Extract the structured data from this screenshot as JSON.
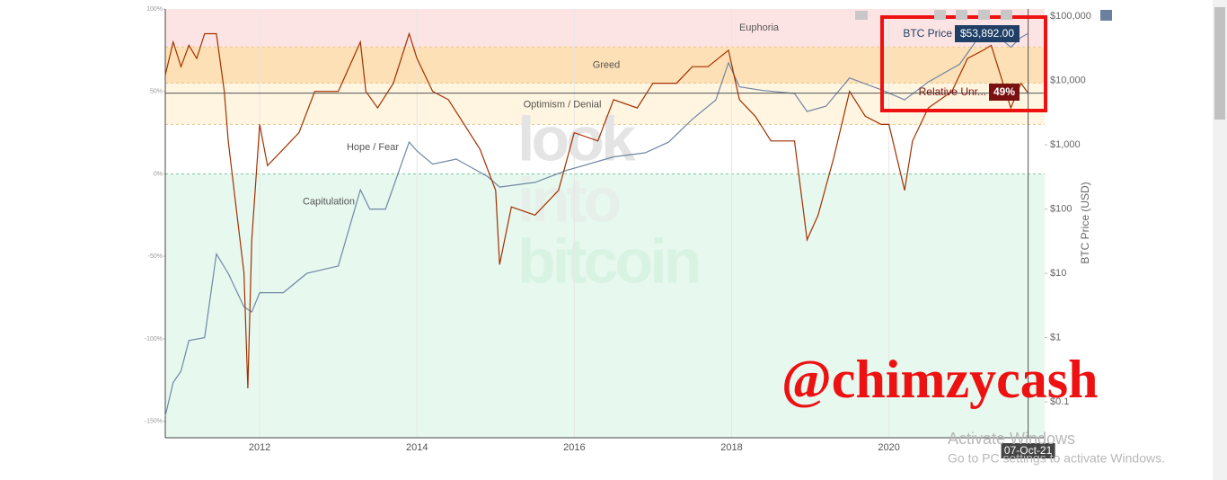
{
  "chart_data": {
    "type": "line",
    "xlim": [
      2010.8,
      2021.98
    ],
    "xticks": [
      2012,
      2014,
      2016,
      2018,
      2020
    ],
    "ylim": [
      -160,
      100
    ],
    "yticks": [
      {
        "value": 100,
        "label": "100%"
      },
      {
        "value": 50,
        "label": "50%"
      },
      {
        "value": 0,
        "label": "0%"
      },
      {
        "value": -50,
        "label": "-50%"
      },
      {
        "value": -100,
        "label": "-100%"
      },
      {
        "value": -150,
        "label": "-150%"
      }
    ],
    "y2lim": [
      0.0276,
      130000
    ],
    "y2log": true,
    "y2ticks": [
      {
        "value": 0.1,
        "label": "$0.1"
      },
      {
        "value": 1,
        "label": "$1"
      },
      {
        "value": 10,
        "label": "$10"
      },
      {
        "value": 100,
        "label": "$100"
      },
      {
        "value": 1000,
        "label": "$1,000"
      },
      {
        "value": 10000,
        "label": "$10,000"
      },
      {
        "value": 100000,
        "label": "$100,000"
      }
    ],
    "y2_label": "BTC Price (USD)",
    "zones": [
      {
        "label": "Euphoria",
        "from": 77,
        "to": 100,
        "color": "#fde4e4"
      },
      {
        "label": "Greed",
        "from": 55,
        "to": 77,
        "color": "#fde0b5"
      },
      {
        "label": "Optimism / Denial",
        "from": 30,
        "to": 55,
        "color": "#fff5e0"
      },
      {
        "label": "Hope / Fear",
        "from": 0,
        "to": 30,
        "color": "#ffffff"
      },
      {
        "label": "Capitulation",
        "from": -160,
        "to": 0,
        "color": "#e7f8ef"
      }
    ],
    "series": [
      {
        "name": "BTC Price",
        "axis": "y2",
        "color": "#6f87a5",
        "x": [
          2010.8,
          2010.9,
          2011.0,
          2011.1,
          2011.3,
          2011.45,
          2011.6,
          2011.8,
          2011.9,
          2012.0,
          2012.3,
          2012.6,
          2013.0,
          2013.28,
          2013.4,
          2013.6,
          2013.9,
          2014.0,
          2014.2,
          2014.5,
          2014.9,
          2015.05,
          2015.5,
          2015.9,
          2016.5,
          2016.9,
          2017.2,
          2017.5,
          2017.8,
          2017.96,
          2018.1,
          2018.4,
          2018.8,
          2018.96,
          2019.2,
          2019.5,
          2019.9,
          2020.2,
          2020.5,
          2020.9,
          2021.1,
          2021.3,
          2021.55,
          2021.68,
          2021.77
        ],
        "values": [
          0.06,
          0.2,
          0.3,
          0.9,
          1,
          20,
          10,
          3,
          2.5,
          5,
          5,
          10,
          13,
          200,
          100,
          100,
          1100,
          800,
          500,
          600,
          320,
          220,
          260,
          400,
          650,
          750,
          1100,
          2500,
          5000,
          19000,
          8000,
          7000,
          6300,
          3300,
          4000,
          11000,
          7200,
          5000,
          9500,
          18000,
          40000,
          60000,
          33000,
          47000,
          53892
        ],
        "value_labels": [
          null,
          null,
          null,
          null,
          null,
          null,
          null,
          null,
          null,
          null,
          null,
          null,
          null,
          null,
          null,
          null,
          null,
          null,
          null,
          null,
          null,
          null,
          null,
          null,
          null,
          null,
          null,
          null,
          null,
          null,
          null,
          null,
          null,
          null,
          null,
          null,
          null,
          null,
          null,
          null,
          null,
          null,
          null,
          null,
          "$53,892.00"
        ]
      },
      {
        "name": "Relative Unr...",
        "color": "#a33000",
        "x": [
          2010.8,
          2010.9,
          2011.0,
          2011.1,
          2011.2,
          2011.3,
          2011.45,
          2011.55,
          2011.6,
          2011.7,
          2011.8,
          2011.85,
          2011.9,
          2012.0,
          2012.1,
          2012.3,
          2012.5,
          2012.7,
          2013.0,
          2013.28,
          2013.35,
          2013.5,
          2013.7,
          2013.9,
          2014.0,
          2014.2,
          2014.4,
          2014.6,
          2014.8,
          2015.0,
          2015.05,
          2015.2,
          2015.5,
          2015.8,
          2016.0,
          2016.3,
          2016.5,
          2016.8,
          2017.0,
          2017.3,
          2017.5,
          2017.7,
          2017.96,
          2018.1,
          2018.3,
          2018.5,
          2018.8,
          2018.96,
          2019.1,
          2019.3,
          2019.5,
          2019.7,
          2019.9,
          2020.0,
          2020.2,
          2020.3,
          2020.5,
          2020.8,
          2021.0,
          2021.2,
          2021.3,
          2021.45,
          2021.55,
          2021.68,
          2021.77
        ],
        "values": [
          60,
          80,
          65,
          78,
          70,
          85,
          85,
          50,
          20,
          -20,
          -60,
          -130,
          -40,
          30,
          5,
          15,
          25,
          50,
          50,
          80,
          50,
          40,
          55,
          85,
          70,
          50,
          45,
          30,
          15,
          -10,
          -55,
          -20,
          -25,
          -10,
          25,
          20,
          45,
          40,
          55,
          55,
          65,
          65,
          75,
          45,
          35,
          20,
          20,
          -40,
          -25,
          10,
          50,
          35,
          30,
          30,
          -10,
          20,
          40,
          50,
          70,
          75,
          78,
          55,
          40,
          55,
          49
        ],
        "value_labels": [
          null,
          null,
          null,
          null,
          null,
          null,
          null,
          null,
          null,
          null,
          null,
          null,
          null,
          null,
          null,
          null,
          null,
          null,
          null,
          null,
          null,
          null,
          null,
          null,
          null,
          null,
          null,
          null,
          null,
          null,
          null,
          null,
          null,
          null,
          null,
          null,
          null,
          null,
          null,
          null,
          null,
          null,
          null,
          null,
          null,
          null,
          null,
          null,
          null,
          null,
          null,
          null,
          null,
          null,
          null,
          null,
          null,
          null,
          null,
          null,
          null,
          null,
          null,
          null,
          "49%"
        ]
      }
    ],
    "cursor_label": "07-Oct-21",
    "watermark": [
      "look",
      "into",
      "bitcoin"
    ]
  },
  "overlay": {
    "handle": "@chimzycash",
    "activate_title": "Activate Windows",
    "activate_text": "Go to PC settings to activate Windows."
  }
}
